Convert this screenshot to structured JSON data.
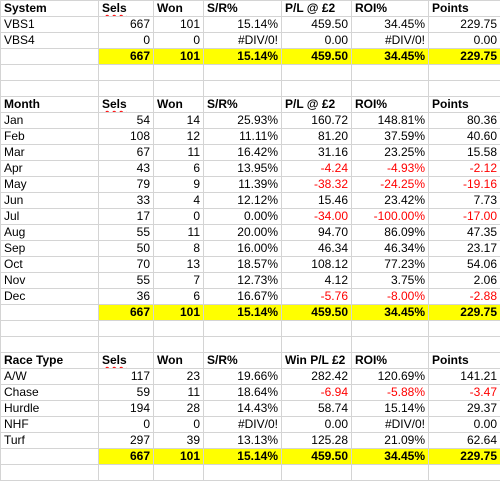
{
  "sections": [
    {
      "headers": [
        "System",
        "Sels",
        "Won",
        "S/R%",
        "P/L @ £2",
        "ROI%",
        "Points"
      ],
      "rows": [
        [
          "VBS1",
          "667",
          "101",
          "15.14%",
          "459.50",
          "34.45%",
          "229.75"
        ],
        [
          "VBS4",
          "0",
          "0",
          "#DIV/0!",
          "0.00",
          "#DIV/0!",
          "0.00"
        ]
      ],
      "total": [
        "",
        "667",
        "101",
        "15.14%",
        "459.50",
        "34.45%",
        "229.75"
      ]
    },
    {
      "headers": [
        "Month",
        "Sels",
        "Won",
        "S/R%",
        "P/L @ £2",
        "ROI%",
        "Points"
      ],
      "rows": [
        [
          "Jan",
          "54",
          "14",
          "25.93%",
          "160.72",
          "148.81%",
          "80.36"
        ],
        [
          "Feb",
          "108",
          "12",
          "11.11%",
          "81.20",
          "37.59%",
          "40.60"
        ],
        [
          "Mar",
          "67",
          "11",
          "16.42%",
          "31.16",
          "23.25%",
          "15.58"
        ],
        [
          "Apr",
          "43",
          "6",
          "13.95%",
          "-4.24",
          "-4.93%",
          "-2.12"
        ],
        [
          "May",
          "79",
          "9",
          "11.39%",
          "-38.32",
          "-24.25%",
          "-19.16"
        ],
        [
          "Jun",
          "33",
          "4",
          "12.12%",
          "15.46",
          "23.42%",
          "7.73"
        ],
        [
          "Jul",
          "17",
          "0",
          "0.00%",
          "-34.00",
          "-100.00%",
          "-17.00"
        ],
        [
          "Aug",
          "55",
          "11",
          "20.00%",
          "94.70",
          "86.09%",
          "47.35"
        ],
        [
          "Sep",
          "50",
          "8",
          "16.00%",
          "46.34",
          "46.34%",
          "23.17"
        ],
        [
          "Oct",
          "70",
          "13",
          "18.57%",
          "108.12",
          "77.23%",
          "54.06"
        ],
        [
          "Nov",
          "55",
          "7",
          "12.73%",
          "4.12",
          "3.75%",
          "2.06"
        ],
        [
          "Dec",
          "36",
          "6",
          "16.67%",
          "-5.76",
          "-8.00%",
          "-2.88"
        ]
      ],
      "total": [
        "",
        "667",
        "101",
        "15.14%",
        "459.50",
        "34.45%",
        "229.75"
      ]
    },
    {
      "headers": [
        "Race Type",
        "Sels",
        "Won",
        "S/R%",
        "Win P/L £2",
        "ROI%",
        "Points"
      ],
      "rows": [
        [
          "A/W",
          "117",
          "23",
          "19.66%",
          "282.42",
          "120.69%",
          "141.21"
        ],
        [
          "Chase",
          "59",
          "11",
          "18.64%",
          "-6.94",
          "-5.88%",
          "-3.47"
        ],
        [
          "Hurdle",
          "194",
          "28",
          "14.43%",
          "58.74",
          "15.14%",
          "29.37"
        ],
        [
          "NHF",
          "0",
          "0",
          "#DIV/0!",
          "0.00",
          "#DIV/0!",
          "0.00"
        ],
        [
          "Turf",
          "297",
          "39",
          "13.13%",
          "125.28",
          "21.09%",
          "62.64"
        ]
      ],
      "total": [
        "",
        "667",
        "101",
        "15.14%",
        "459.50",
        "34.45%",
        "229.75"
      ]
    }
  ],
  "colors": {
    "highlight": "#ffff00",
    "negative": "#ff0000",
    "gridline": "#d4d4d4"
  }
}
